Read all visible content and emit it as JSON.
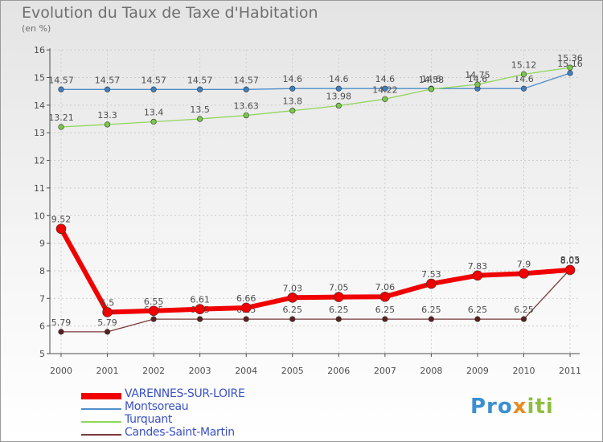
{
  "header": {
    "title": "Evolution du Taux de Taxe d'Habitation",
    "unit": "(en %)"
  },
  "logo": {
    "p": "Pro",
    "x": "x",
    "rest": "iti"
  },
  "colors": {
    "axis": "#4d4d4d",
    "grid": "#cccccc",
    "label": "#4d4d4d"
  },
  "chart_data": {
    "type": "line",
    "title": "Evolution du Taux de Taxe d'Habitation",
    "ylabel": "(en %)",
    "xlabel": "",
    "ylim": [
      5,
      16
    ],
    "yticks": [
      5,
      6,
      7,
      8,
      9,
      10,
      11,
      12,
      13,
      14,
      15,
      16
    ],
    "categories": [
      "2000",
      "2001",
      "2002",
      "2003",
      "2004",
      "2005",
      "2006",
      "2007",
      "2008",
      "2009",
      "2010",
      "2011"
    ],
    "series": [
      {
        "name": "Montsoreau",
        "color": "#4f8ec9",
        "marker": "#3f7fbe",
        "width": 1.3,
        "msize": 3.3,
        "labelSize": 11,
        "values": [
          14.57,
          14.57,
          14.57,
          14.57,
          14.57,
          14.6,
          14.6,
          14.6,
          14.6,
          14.6,
          14.6,
          15.16
        ],
        "labels": [
          "14.57",
          "14.57",
          "14.57",
          "14.57",
          "14.57",
          "14.6",
          "14.6",
          "14.6",
          "14.6",
          "14.6",
          "14.6",
          "15.16"
        ]
      },
      {
        "name": "Turquant",
        "color": "#8fd65a",
        "marker": "#7ac84a",
        "width": 1.3,
        "msize": 3.3,
        "labelSize": 11,
        "values": [
          13.21,
          13.3,
          13.4,
          13.5,
          13.63,
          13.8,
          13.98,
          14.22,
          14.58,
          14.75,
          15.12,
          15.36
        ],
        "labels": [
          "13.21",
          "13.3",
          "13.4",
          "13.5",
          "13.63",
          "13.8",
          "13.98",
          "14.22",
          "14.58",
          "14.75",
          "15.12",
          "15.36"
        ]
      },
      {
        "name": "Candes-Saint-Martin",
        "color": "#7a3a3a",
        "marker": "#5a2020",
        "width": 1.3,
        "msize": 3.3,
        "labelSize": 11,
        "values": [
          5.79,
          5.79,
          6.25,
          6.25,
          6.25,
          6.25,
          6.25,
          6.25,
          6.25,
          6.25,
          6.25,
          8.05
        ],
        "labels": [
          "5.79",
          "5.79",
          "6.25",
          "6.25",
          "6.25",
          "6.25",
          "6.25",
          "6.25",
          "6.25",
          "6.25",
          "6.25",
          "8.05"
        ]
      },
      {
        "name": "VARENNES-SUR-LOIRE",
        "color": "#f00000",
        "marker": "#f00000",
        "width": 6,
        "msize": 6,
        "labelSize": 11,
        "values": [
          9.52,
          6.5,
          6.55,
          6.61,
          6.66,
          7.03,
          7.05,
          7.06,
          7.53,
          7.83,
          7.9,
          8.03
        ],
        "labels": [
          "9.52",
          "6.5",
          "6.55",
          "6.61",
          "6.66",
          "7.03",
          "7.05",
          "7.06",
          "7.53",
          "7.83",
          "7.9",
          "8.03"
        ]
      }
    ],
    "legend": [
      "VARENNES-SUR-LOIRE",
      "Montsoreau",
      "Turquant",
      "Candes-Saint-Martin"
    ],
    "legend_position": "bottom-left"
  }
}
